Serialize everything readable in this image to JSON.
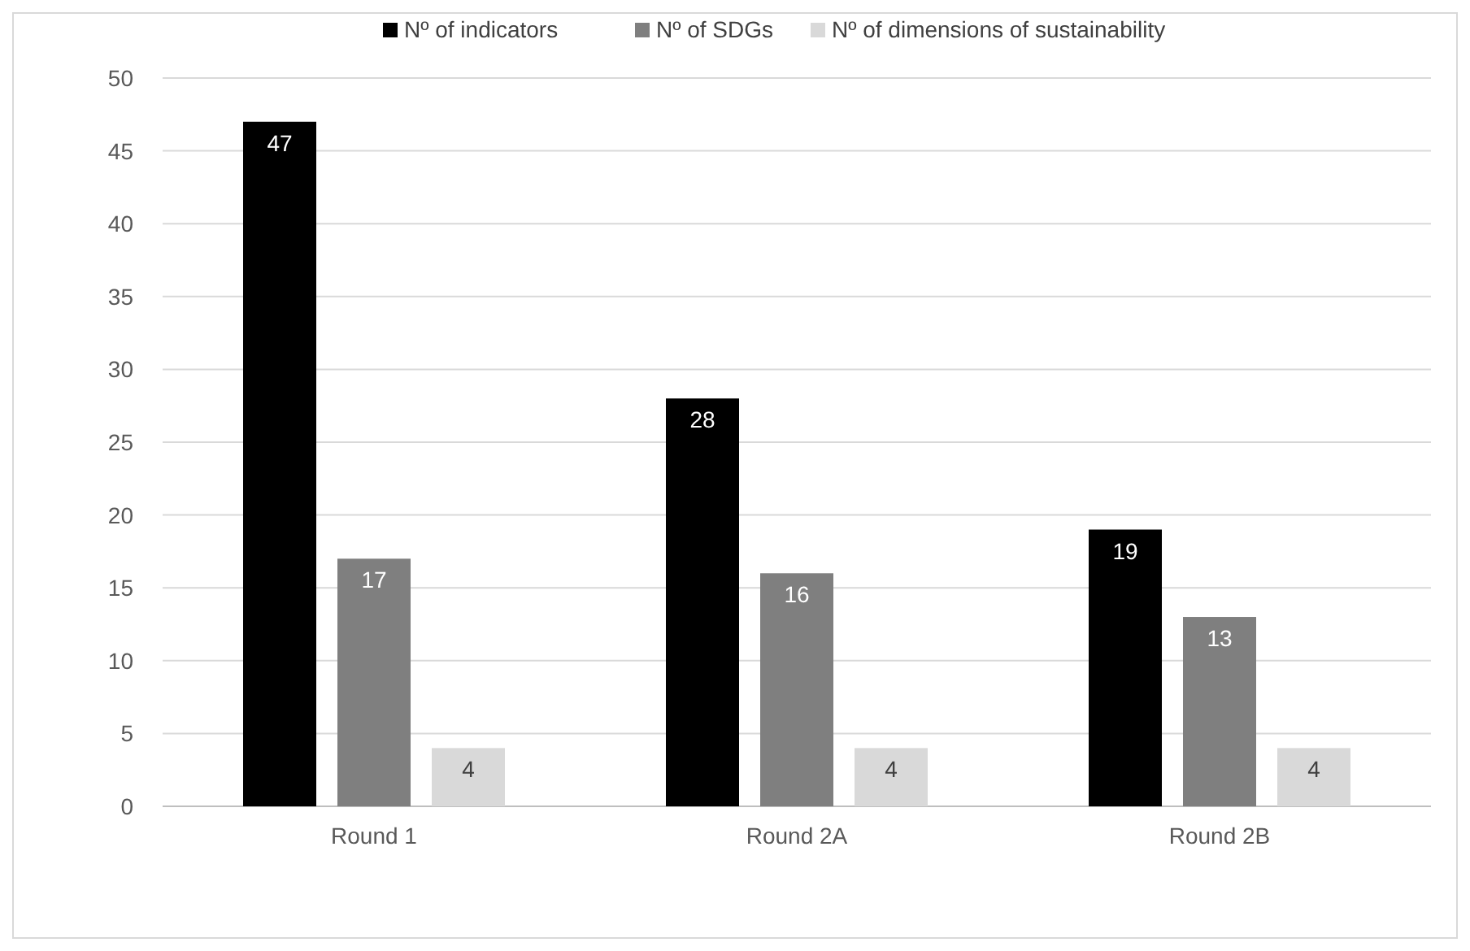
{
  "chart_data": {
    "type": "bar",
    "categories": [
      "Round 1",
      "Round 2A",
      "Round 2B"
    ],
    "series": [
      {
        "name": "Nº of indicators",
        "color": "#000000",
        "values": [
          47,
          28,
          19
        ]
      },
      {
        "name": "Nº of SDGs",
        "color": "#7f7f7f",
        "values": [
          17,
          16,
          13
        ]
      },
      {
        "name": "Nº of dimensions of sustainability",
        "color": "#d9d9d9",
        "values": [
          4,
          4,
          4
        ]
      }
    ],
    "ylim": [
      0,
      50
    ],
    "yticks": [
      0,
      5,
      10,
      15,
      20,
      25,
      30,
      35,
      40,
      45,
      50
    ],
    "grid": "y",
    "legend": "top",
    "data_labels": true
  }
}
